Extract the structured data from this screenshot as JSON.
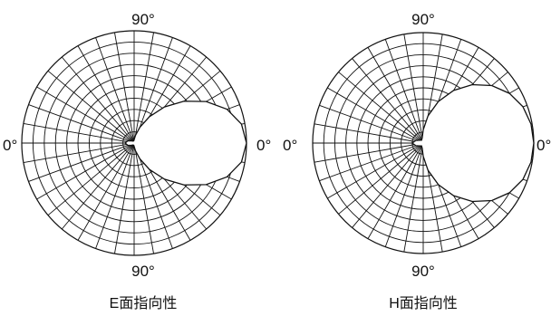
{
  "chart_data": [
    {
      "type": "polar",
      "title": "E面指向性",
      "angle_labels": {
        "top": "90°",
        "bottom": "90°",
        "left": "0°",
        "right": "0°"
      },
      "grid": true,
      "radial_rings": 10,
      "radial_spokes_deg": 10,
      "r_max": 1.0,
      "pattern": {
        "name": "",
        "angle_deg": [
          0,
          10,
          20,
          30,
          40,
          50,
          60,
          70,
          80,
          90,
          100,
          120,
          140,
          160,
          180
        ],
        "radius": [
          1.0,
          0.97,
          0.88,
          0.74,
          0.58,
          0.42,
          0.27,
          0.15,
          0.07,
          0.03,
          0.02,
          0.02,
          0.03,
          0.06,
          0.08
        ]
      }
    },
    {
      "type": "polar",
      "title": "H面指向性",
      "angle_labels": {
        "top": "90°",
        "bottom": "90°",
        "left": "0°",
        "right": "0°"
      },
      "grid": true,
      "radial_rings": 10,
      "radial_spokes_deg": 10,
      "r_max": 1.0,
      "pattern": {
        "name": "",
        "angle_deg": [
          0,
          10,
          20,
          30,
          40,
          50,
          60,
          70,
          80,
          90,
          100,
          120,
          140,
          160,
          180
        ],
        "radius": [
          1.0,
          0.99,
          0.96,
          0.9,
          0.81,
          0.69,
          0.55,
          0.4,
          0.25,
          0.12,
          0.05,
          0.03,
          0.04,
          0.07,
          0.1
        ]
      }
    }
  ]
}
